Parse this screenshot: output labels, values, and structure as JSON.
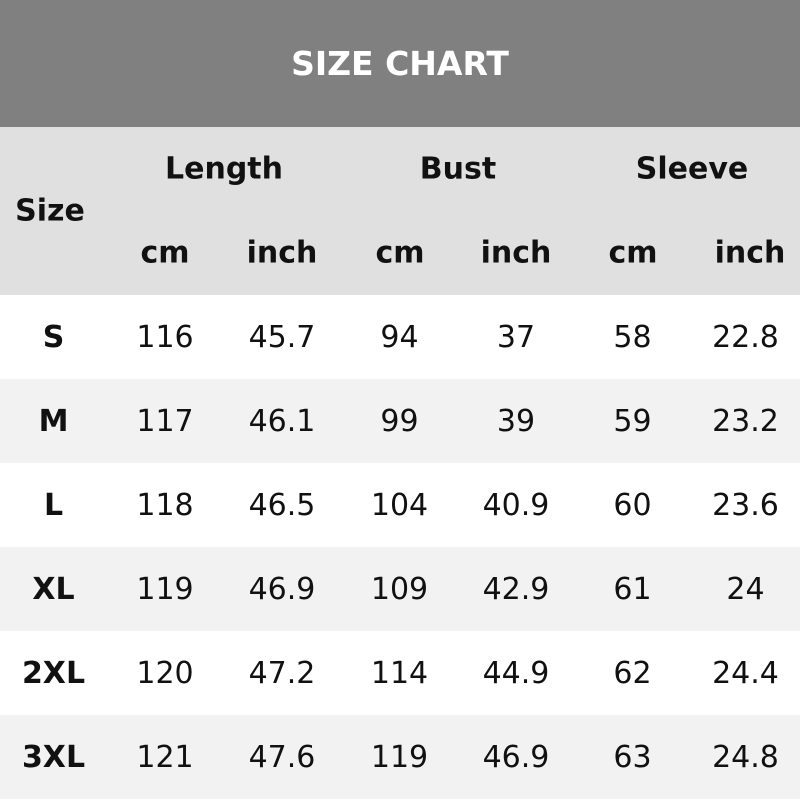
{
  "title": "SIZE CHART",
  "header": {
    "size": "Size",
    "groups": [
      "Length",
      "Bust",
      "Sleeve"
    ],
    "units": [
      "cm",
      "inch",
      "cm",
      "inch",
      "cm",
      "inch"
    ]
  },
  "rows": [
    [
      "S",
      "116",
      "45.7",
      "94",
      "37",
      "58",
      "22.8"
    ],
    [
      "M",
      "117",
      "46.1",
      "99",
      "39",
      "59",
      "23.2"
    ],
    [
      "L",
      "118",
      "46.5",
      "104",
      "40.9",
      "60",
      "23.6"
    ],
    [
      "XL",
      "119",
      "46.9",
      "109",
      "42.9",
      "61",
      "24"
    ],
    [
      "2XL",
      "120",
      "47.2",
      "114",
      "44.9",
      "62",
      "24.4"
    ],
    [
      "3XL",
      "121",
      "47.6",
      "119",
      "46.9",
      "63",
      "24.8"
    ]
  ]
}
